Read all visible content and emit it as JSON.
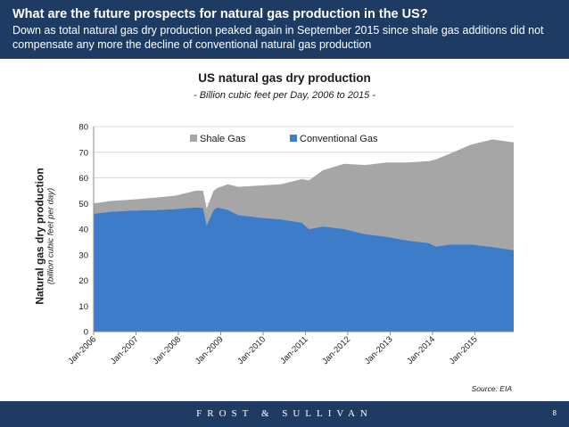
{
  "header": {
    "title": "What are the future prospects for natural gas production in the US?",
    "subtitle": "Down as total natural gas dry production peaked again in September 2015 since shale gas additions did not compensate any more the decline of conventional natural gas production"
  },
  "footer": {
    "brand": "FROST & SULLIVAN",
    "page_number": "8"
  },
  "source": "Source: EIA",
  "colors": {
    "header_bg": "#1e3b63",
    "shale": "#a6a6a6",
    "conventional": "#3d7cc9",
    "grid": "#d9d9d9"
  },
  "chart_data": {
    "type": "area",
    "stacked": true,
    "title": "US natural gas dry production",
    "subtitle": "- Billion cubic feet per Day, 2006 to 2015 -",
    "ylabel": "Natural gas dry production",
    "ylabel_unit": "(billion cubic feet per day)",
    "ylim": [
      0,
      80
    ],
    "yticks": [
      0,
      10,
      20,
      30,
      40,
      50,
      60,
      70,
      80
    ],
    "grid": true,
    "legend_position": "top-center",
    "x_tick_labels": [
      "Jan-2006",
      "Jan-2007",
      "Jan-2008",
      "Jan-2009",
      "Jan-2010",
      "Jan-2011",
      "Jan-2012",
      "Jan-2013",
      "Jan-2014",
      "Jan-2015"
    ],
    "x_start": "2006-01",
    "x_end": "2015-12",
    "series": [
      {
        "name": "Conventional Gas",
        "color": "#3d7cc9",
        "points": [
          [
            "2006-01",
            46.0
          ],
          [
            "2006-06",
            46.8
          ],
          [
            "2006-12",
            47.2
          ],
          [
            "2007-06",
            47.4
          ],
          [
            "2007-12",
            47.8
          ],
          [
            "2008-06",
            48.5
          ],
          [
            "2008-08",
            48.2
          ],
          [
            "2008-09",
            41.5
          ],
          [
            "2008-11",
            47.5
          ],
          [
            "2008-12",
            48.5
          ],
          [
            "2009-03",
            47.5
          ],
          [
            "2009-06",
            45.5
          ],
          [
            "2009-12",
            44.5
          ],
          [
            "2010-06",
            43.8
          ],
          [
            "2010-12",
            42.5
          ],
          [
            "2011-02",
            40.0
          ],
          [
            "2011-06",
            41.0
          ],
          [
            "2011-12",
            40.0
          ],
          [
            "2012-06",
            38.0
          ],
          [
            "2012-12",
            37.0
          ],
          [
            "2013-06",
            35.5
          ],
          [
            "2013-12",
            34.5
          ],
          [
            "2014-02",
            33.2
          ],
          [
            "2014-06",
            34.0
          ],
          [
            "2014-12",
            34.0
          ],
          [
            "2015-06",
            33.0
          ],
          [
            "2015-12",
            31.8
          ]
        ]
      },
      {
        "name": "Shale Gas",
        "color": "#a6a6a6",
        "points": [
          [
            "2006-01",
            4.0
          ],
          [
            "2006-06",
            4.2
          ],
          [
            "2006-12",
            4.3
          ],
          [
            "2007-06",
            4.8
          ],
          [
            "2007-12",
            5.2
          ],
          [
            "2008-06",
            6.5
          ],
          [
            "2008-08",
            6.8
          ],
          [
            "2008-09",
            6.5
          ],
          [
            "2008-11",
            7.5
          ],
          [
            "2008-12",
            7.5
          ],
          [
            "2009-03",
            10.0
          ],
          [
            "2009-06",
            11.0
          ],
          [
            "2009-12",
            12.5
          ],
          [
            "2010-06",
            13.7
          ],
          [
            "2010-12",
            17.0
          ],
          [
            "2011-02",
            19.0
          ],
          [
            "2011-06",
            22.0
          ],
          [
            "2011-12",
            25.5
          ],
          [
            "2012-06",
            27.0
          ],
          [
            "2012-12",
            29.0
          ],
          [
            "2013-06",
            30.5
          ],
          [
            "2013-12",
            32.0
          ],
          [
            "2014-02",
            34.0
          ],
          [
            "2014-06",
            35.5
          ],
          [
            "2014-12",
            39.0
          ],
          [
            "2015-06",
            42.0
          ],
          [
            "2015-12",
            42.0
          ]
        ]
      }
    ]
  }
}
